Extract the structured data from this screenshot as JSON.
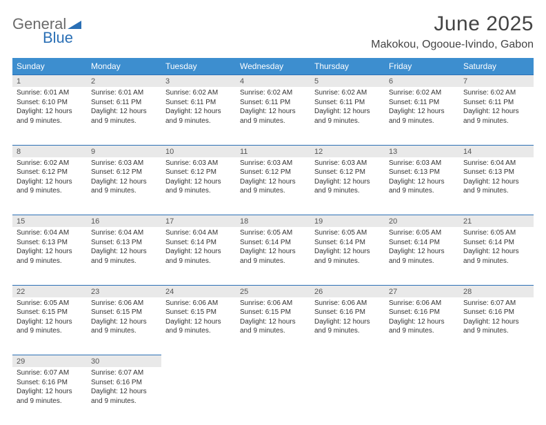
{
  "logo": {
    "text_top": "General",
    "text_bottom": "Blue"
  },
  "header": {
    "month_title": "June 2025",
    "location": "Makokou, Ogooue-Ivindo, Gabon"
  },
  "colors": {
    "header_bg": "#3d8ecf",
    "header_text": "#ffffff",
    "daynum_bg": "#e9e9e9",
    "rule": "#2a6fb5",
    "body_text": "#333333",
    "logo_gray": "#6a6a6a",
    "logo_blue": "#2a6fb5"
  },
  "weekdays": [
    "Sunday",
    "Monday",
    "Tuesday",
    "Wednesday",
    "Thursday",
    "Friday",
    "Saturday"
  ],
  "weeks": [
    [
      {
        "n": "1",
        "sunrise": "Sunrise: 6:01 AM",
        "sunset": "Sunset: 6:10 PM",
        "day1": "Daylight: 12 hours",
        "day2": "and 9 minutes."
      },
      {
        "n": "2",
        "sunrise": "Sunrise: 6:01 AM",
        "sunset": "Sunset: 6:11 PM",
        "day1": "Daylight: 12 hours",
        "day2": "and 9 minutes."
      },
      {
        "n": "3",
        "sunrise": "Sunrise: 6:02 AM",
        "sunset": "Sunset: 6:11 PM",
        "day1": "Daylight: 12 hours",
        "day2": "and 9 minutes."
      },
      {
        "n": "4",
        "sunrise": "Sunrise: 6:02 AM",
        "sunset": "Sunset: 6:11 PM",
        "day1": "Daylight: 12 hours",
        "day2": "and 9 minutes."
      },
      {
        "n": "5",
        "sunrise": "Sunrise: 6:02 AM",
        "sunset": "Sunset: 6:11 PM",
        "day1": "Daylight: 12 hours",
        "day2": "and 9 minutes."
      },
      {
        "n": "6",
        "sunrise": "Sunrise: 6:02 AM",
        "sunset": "Sunset: 6:11 PM",
        "day1": "Daylight: 12 hours",
        "day2": "and 9 minutes."
      },
      {
        "n": "7",
        "sunrise": "Sunrise: 6:02 AM",
        "sunset": "Sunset: 6:11 PM",
        "day1": "Daylight: 12 hours",
        "day2": "and 9 minutes."
      }
    ],
    [
      {
        "n": "8",
        "sunrise": "Sunrise: 6:02 AM",
        "sunset": "Sunset: 6:12 PM",
        "day1": "Daylight: 12 hours",
        "day2": "and 9 minutes."
      },
      {
        "n": "9",
        "sunrise": "Sunrise: 6:03 AM",
        "sunset": "Sunset: 6:12 PM",
        "day1": "Daylight: 12 hours",
        "day2": "and 9 minutes."
      },
      {
        "n": "10",
        "sunrise": "Sunrise: 6:03 AM",
        "sunset": "Sunset: 6:12 PM",
        "day1": "Daylight: 12 hours",
        "day2": "and 9 minutes."
      },
      {
        "n": "11",
        "sunrise": "Sunrise: 6:03 AM",
        "sunset": "Sunset: 6:12 PM",
        "day1": "Daylight: 12 hours",
        "day2": "and 9 minutes."
      },
      {
        "n": "12",
        "sunrise": "Sunrise: 6:03 AM",
        "sunset": "Sunset: 6:12 PM",
        "day1": "Daylight: 12 hours",
        "day2": "and 9 minutes."
      },
      {
        "n": "13",
        "sunrise": "Sunrise: 6:03 AM",
        "sunset": "Sunset: 6:13 PM",
        "day1": "Daylight: 12 hours",
        "day2": "and 9 minutes."
      },
      {
        "n": "14",
        "sunrise": "Sunrise: 6:04 AM",
        "sunset": "Sunset: 6:13 PM",
        "day1": "Daylight: 12 hours",
        "day2": "and 9 minutes."
      }
    ],
    [
      {
        "n": "15",
        "sunrise": "Sunrise: 6:04 AM",
        "sunset": "Sunset: 6:13 PM",
        "day1": "Daylight: 12 hours",
        "day2": "and 9 minutes."
      },
      {
        "n": "16",
        "sunrise": "Sunrise: 6:04 AM",
        "sunset": "Sunset: 6:13 PM",
        "day1": "Daylight: 12 hours",
        "day2": "and 9 minutes."
      },
      {
        "n": "17",
        "sunrise": "Sunrise: 6:04 AM",
        "sunset": "Sunset: 6:14 PM",
        "day1": "Daylight: 12 hours",
        "day2": "and 9 minutes."
      },
      {
        "n": "18",
        "sunrise": "Sunrise: 6:05 AM",
        "sunset": "Sunset: 6:14 PM",
        "day1": "Daylight: 12 hours",
        "day2": "and 9 minutes."
      },
      {
        "n": "19",
        "sunrise": "Sunrise: 6:05 AM",
        "sunset": "Sunset: 6:14 PM",
        "day1": "Daylight: 12 hours",
        "day2": "and 9 minutes."
      },
      {
        "n": "20",
        "sunrise": "Sunrise: 6:05 AM",
        "sunset": "Sunset: 6:14 PM",
        "day1": "Daylight: 12 hours",
        "day2": "and 9 minutes."
      },
      {
        "n": "21",
        "sunrise": "Sunrise: 6:05 AM",
        "sunset": "Sunset: 6:14 PM",
        "day1": "Daylight: 12 hours",
        "day2": "and 9 minutes."
      }
    ],
    [
      {
        "n": "22",
        "sunrise": "Sunrise: 6:05 AM",
        "sunset": "Sunset: 6:15 PM",
        "day1": "Daylight: 12 hours",
        "day2": "and 9 minutes."
      },
      {
        "n": "23",
        "sunrise": "Sunrise: 6:06 AM",
        "sunset": "Sunset: 6:15 PM",
        "day1": "Daylight: 12 hours",
        "day2": "and 9 minutes."
      },
      {
        "n": "24",
        "sunrise": "Sunrise: 6:06 AM",
        "sunset": "Sunset: 6:15 PM",
        "day1": "Daylight: 12 hours",
        "day2": "and 9 minutes."
      },
      {
        "n": "25",
        "sunrise": "Sunrise: 6:06 AM",
        "sunset": "Sunset: 6:15 PM",
        "day1": "Daylight: 12 hours",
        "day2": "and 9 minutes."
      },
      {
        "n": "26",
        "sunrise": "Sunrise: 6:06 AM",
        "sunset": "Sunset: 6:16 PM",
        "day1": "Daylight: 12 hours",
        "day2": "and 9 minutes."
      },
      {
        "n": "27",
        "sunrise": "Sunrise: 6:06 AM",
        "sunset": "Sunset: 6:16 PM",
        "day1": "Daylight: 12 hours",
        "day2": "and 9 minutes."
      },
      {
        "n": "28",
        "sunrise": "Sunrise: 6:07 AM",
        "sunset": "Sunset: 6:16 PM",
        "day1": "Daylight: 12 hours",
        "day2": "and 9 minutes."
      }
    ],
    [
      {
        "n": "29",
        "sunrise": "Sunrise: 6:07 AM",
        "sunset": "Sunset: 6:16 PM",
        "day1": "Daylight: 12 hours",
        "day2": "and 9 minutes."
      },
      {
        "n": "30",
        "sunrise": "Sunrise: 6:07 AM",
        "sunset": "Sunset: 6:16 PM",
        "day1": "Daylight: 12 hours",
        "day2": "and 9 minutes."
      },
      {
        "empty": true
      },
      {
        "empty": true
      },
      {
        "empty": true
      },
      {
        "empty": true
      },
      {
        "empty": true
      }
    ]
  ]
}
